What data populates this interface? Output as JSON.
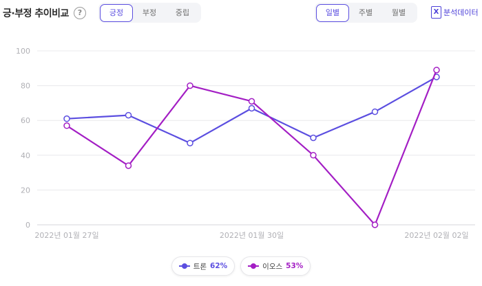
{
  "header": {
    "title": "긍·부정 추이비교",
    "help_symbol": "?",
    "sentiment_tabs": [
      {
        "label": "긍정",
        "active": true
      },
      {
        "label": "부정",
        "active": false
      },
      {
        "label": "중립",
        "active": false
      }
    ],
    "period_tabs": [
      {
        "label": "일별",
        "active": true
      },
      {
        "label": "주별",
        "active": false
      },
      {
        "label": "월별",
        "active": false
      }
    ],
    "data_link_label": "분석데이터",
    "data_link_icon_glyph": "X"
  },
  "colors": {
    "accent": "#5b4ee0",
    "grid": "#e8e8ec",
    "axis_text": "#b0b0b5"
  },
  "chart_data": {
    "type": "line",
    "ylim": [
      0,
      100
    ],
    "y_ticks": [
      0,
      20,
      40,
      60,
      80,
      100
    ],
    "x": [
      "2022년 01월 27일",
      "2022년 01월 28일",
      "2022년 01월 29일",
      "2022년 01월 30일",
      "2022년 01월 31일",
      "2022년 02월 01일",
      "2022년 02월 02일"
    ],
    "x_tick_labels": [
      "2022년 01월 27일",
      "2022년 01월 30일",
      "2022년 02월 02일"
    ],
    "grid": true,
    "legend_position": "bottom",
    "series": [
      {
        "name": "트론",
        "percent_label": "62%",
        "color": "#5b4ee0",
        "values": [
          61,
          63,
          47,
          67,
          50,
          65,
          85
        ]
      },
      {
        "name": "이오스",
        "percent_label": "53%",
        "color": "#a31ec4",
        "values": [
          57,
          34,
          80,
          71,
          40,
          0,
          89
        ]
      }
    ]
  }
}
